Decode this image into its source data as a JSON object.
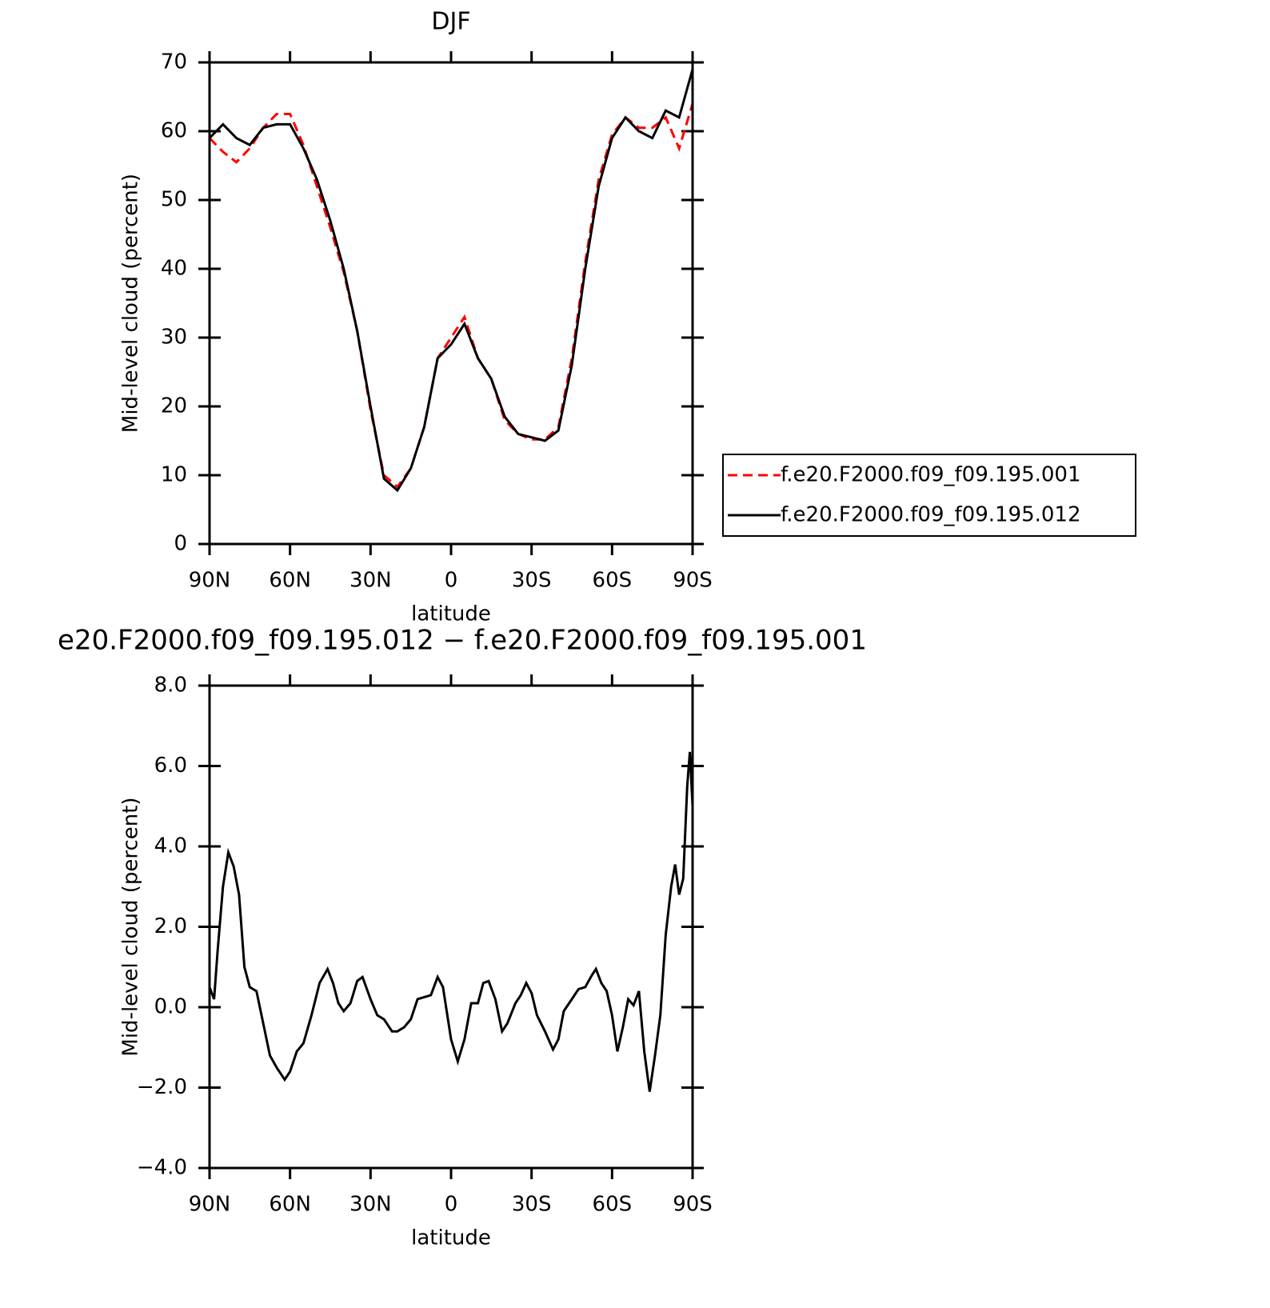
{
  "chart_data": [
    {
      "type": "line",
      "title": "DJF",
      "xlabel": "latitude",
      "ylabel": "Mid-level cloud (percent)",
      "x": [
        90,
        85,
        80,
        75,
        70,
        65,
        60,
        55,
        50,
        45,
        40,
        35,
        30,
        25,
        20,
        15,
        10,
        5,
        0,
        -5,
        -10,
        -15,
        -20,
        -25,
        -30,
        -35,
        -40,
        -45,
        -50,
        -55,
        -60,
        -65,
        -70,
        -75,
        -80,
        -85,
        -90
      ],
      "series": [
        {
          "name": "f.e20.F2000.f09_f09.195.001",
          "color": "#ff0000",
          "dash": true,
          "values": [
            59,
            57,
            55.5,
            57.5,
            60.5,
            62.5,
            62.5,
            58,
            52,
            46,
            39.5,
            31,
            19.5,
            10,
            8.3,
            11,
            17,
            27,
            30,
            33,
            27,
            24,
            18,
            16,
            15.2,
            15.2,
            17,
            27,
            41,
            53,
            59.5,
            62,
            60.5,
            60.5,
            62,
            57.5,
            64
          ]
        },
        {
          "name": "f.e20.F2000.f09_f09.195.012",
          "color": "#000000",
          "dash": false,
          "values": [
            59,
            61,
            59,
            58,
            60.5,
            61,
            61,
            57.5,
            53,
            47,
            40,
            31,
            20,
            9.5,
            7.8,
            11,
            17,
            27,
            29,
            32,
            27,
            24,
            18.5,
            16,
            15.5,
            15,
            16.5,
            26,
            40,
            52,
            59,
            62,
            60,
            59,
            63,
            62,
            69
          ]
        }
      ],
      "xlim": [
        90,
        -90
      ],
      "ylim": [
        0,
        70
      ],
      "xticks": [
        {
          "value": 90,
          "label": "90N"
        },
        {
          "value": 60,
          "label": "60N"
        },
        {
          "value": 30,
          "label": "30N"
        },
        0,
        {
          "value": -30,
          "label": "30S"
        },
        {
          "value": -60,
          "label": "60S"
        },
        {
          "value": -90,
          "label": "90S"
        }
      ],
      "yticks": [
        0,
        10,
        20,
        30,
        40,
        50,
        60,
        70
      ],
      "legend": "right"
    },
    {
      "type": "line",
      "title": "e20.F2000.f09_f09.195.012 − f.e20.F2000.f09_f09.195.001",
      "xlabel": "latitude",
      "ylabel": "Mid-level cloud (percent)",
      "x": [
        90,
        88.3,
        87,
        85,
        83,
        81,
        79,
        77,
        75,
        72.5,
        70,
        67.5,
        65,
        62,
        60,
        57.5,
        55,
        52,
        49,
        46,
        44,
        42,
        40,
        37.5,
        35,
        33,
        30,
        27.5,
        25,
        22,
        20,
        17.5,
        15,
        12.5,
        10,
        7.5,
        5,
        3,
        0,
        -2.5,
        -5,
        -7.5,
        -10,
        -12,
        -14,
        -16.5,
        -19,
        -21,
        -24,
        -26,
        -28,
        -30,
        -32,
        -35,
        -38,
        -40,
        -42,
        -45,
        -47.5,
        -50,
        -52.5,
        -54,
        -56,
        -58,
        -60,
        -62,
        -64,
        -66,
        -68,
        -70,
        -72,
        -74,
        -76,
        -78,
        -80,
        -82,
        -83.5,
        -85,
        -86.5,
        -88,
        -89,
        -90
      ],
      "series": [
        {
          "color": "#000000",
          "dash": false,
          "values": [
            0.5,
            0.2,
            1.4,
            3.0,
            3.85,
            3.5,
            2.8,
            1.0,
            0.5,
            0.4,
            -0.4,
            -1.2,
            -1.5,
            -1.8,
            -1.6,
            -1.1,
            -0.9,
            -0.2,
            0.6,
            0.95,
            0.6,
            0.1,
            -0.1,
            0.1,
            0.65,
            0.75,
            0.2,
            -0.2,
            -0.3,
            -0.6,
            -0.6,
            -0.5,
            -0.3,
            0.2,
            0.25,
            0.3,
            0.75,
            0.5,
            -0.8,
            -1.35,
            -0.8,
            0.1,
            0.1,
            0.6,
            0.65,
            0.2,
            -0.6,
            -0.4,
            0.1,
            0.3,
            0.6,
            0.35,
            -0.2,
            -0.6,
            -1.05,
            -0.8,
            -0.1,
            0.2,
            0.45,
            0.5,
            0.8,
            0.95,
            0.6,
            0.4,
            -0.2,
            -1.1,
            -0.5,
            0.2,
            0.05,
            0.4,
            -1.1,
            -2.1,
            -1.2,
            -0.2,
            1.8,
            3.0,
            3.55,
            2.8,
            3.2,
            5.5,
            6.35,
            5.0
          ]
        }
      ],
      "xlim": [
        90,
        -90
      ],
      "ylim": [
        -4,
        8
      ],
      "xticks": [
        {
          "value": 90,
          "label": "90N"
        },
        {
          "value": 60,
          "label": "60N"
        },
        {
          "value": 30,
          "label": "30N"
        },
        0,
        {
          "value": -30,
          "label": "30S"
        },
        {
          "value": -60,
          "label": "60S"
        },
        {
          "value": -90,
          "label": "90S"
        }
      ],
      "yticks": [
        {
          "value": -4,
          "label": "−4.0"
        },
        {
          "value": -2,
          "label": "−2.0"
        },
        {
          "value": 0,
          "label": "0.0"
        },
        {
          "value": 2,
          "label": "2.0"
        },
        {
          "value": 4,
          "label": "4.0"
        },
        {
          "value": 6,
          "label": "6.0"
        },
        {
          "value": 8,
          "label": "8.0"
        }
      ]
    }
  ]
}
